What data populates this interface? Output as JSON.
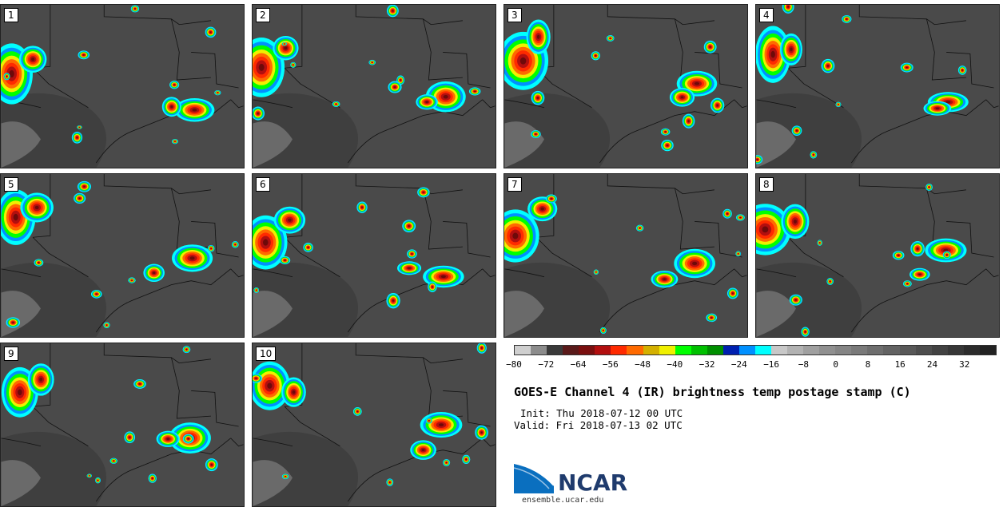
{
  "panels": [
    {
      "label": "1"
    },
    {
      "label": "2"
    },
    {
      "label": "3"
    },
    {
      "label": "4"
    },
    {
      "label": "5"
    },
    {
      "label": "6"
    },
    {
      "label": "7"
    },
    {
      "label": "8"
    },
    {
      "label": "9"
    },
    {
      "label": "10"
    }
  ],
  "colorbar": {
    "colors": [
      "#cfcfcf",
      "#8c8c8c",
      "#3a3a3a",
      "#5a1a1a",
      "#7a0f0f",
      "#b20f0f",
      "#ff2a00",
      "#ff6a00",
      "#d4b000",
      "#f0f000",
      "#00ff00",
      "#00c000",
      "#008f00",
      "#0020b0",
      "#0090ff",
      "#00ffff",
      "#c8c8c8",
      "#b2b2b2",
      "#a0a0a0",
      "#909090",
      "#858585",
      "#7a7a7a",
      "#6e6e6e",
      "#636363",
      "#585858",
      "#4d4d4d",
      "#424242",
      "#373737",
      "#2c2c2c",
      "#222222"
    ],
    "ticks": [
      "−80",
      "−72",
      "−64",
      "−56",
      "−48",
      "−40",
      "−32",
      "−24",
      "−16",
      "−8",
      "0",
      "8",
      "16",
      "24",
      "32"
    ]
  },
  "title": "GOES-E Channel 4 (IR) brightness temp postage stamp (C)",
  "init": "Init: Thu 2018-07-12 00 UTC",
  "valid": "Valid: Fri 2018-07-13 02 UTC",
  "logo": {
    "name": "NCAR",
    "url": "ensemble.ucar.edu"
  }
}
